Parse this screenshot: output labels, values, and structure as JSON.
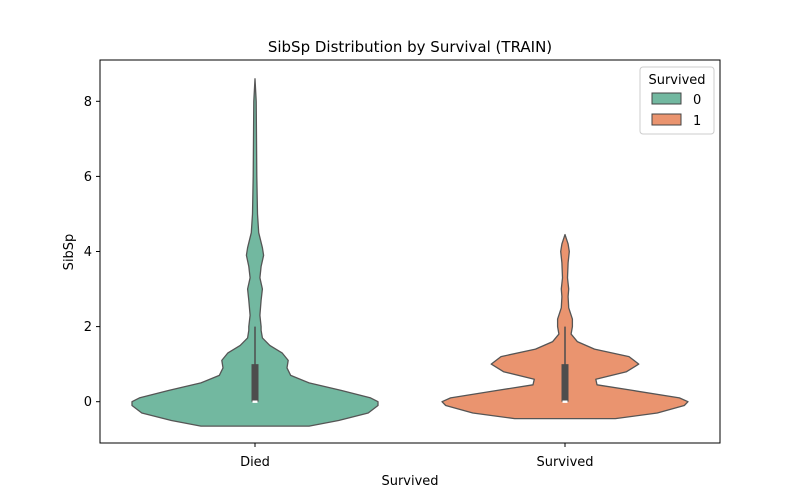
{
  "chart_data": {
    "type": "violin",
    "title": "SibSp Distribution by Survival (TRAIN)",
    "xlabel": "Survived",
    "ylabel": "SibSp",
    "categories": [
      "Died",
      "Survived"
    ],
    "ylim": [
      -1.1,
      9.1
    ],
    "yticks": [
      0,
      2,
      4,
      6,
      8
    ],
    "legend": {
      "title": "Survived",
      "position": "top-right",
      "entries": [
        {
          "label": "0",
          "color": "#72b8a0"
        },
        {
          "label": "1",
          "color": "#ea946f"
        }
      ]
    },
    "series": [
      {
        "name": "0",
        "category": "Died",
        "color": "#72b8a0",
        "range": [
          -0.65,
          8.6
        ],
        "quartiles": {
          "q1": 0,
          "median": 0,
          "q3": 1
        },
        "whiskers": [
          0,
          2
        ],
        "density": [
          [
            -0.65,
            0.44
          ],
          [
            -0.5,
            0.68
          ],
          [
            -0.3,
            0.92
          ],
          [
            -0.1,
            1.0
          ],
          [
            0.0,
            1.0
          ],
          [
            0.1,
            0.94
          ],
          [
            0.3,
            0.7
          ],
          [
            0.5,
            0.44
          ],
          [
            0.7,
            0.29
          ],
          [
            0.9,
            0.26
          ],
          [
            1.1,
            0.27
          ],
          [
            1.3,
            0.22
          ],
          [
            1.5,
            0.12
          ],
          [
            1.7,
            0.06
          ],
          [
            1.9,
            0.05
          ],
          [
            2.0,
            0.05
          ],
          [
            2.3,
            0.04
          ],
          [
            2.7,
            0.05
          ],
          [
            3.0,
            0.06
          ],
          [
            3.3,
            0.04
          ],
          [
            3.6,
            0.05
          ],
          [
            3.9,
            0.07
          ],
          [
            4.1,
            0.06
          ],
          [
            4.5,
            0.03
          ],
          [
            5.0,
            0.02
          ],
          [
            6.0,
            0.015
          ],
          [
            7.0,
            0.012
          ],
          [
            8.0,
            0.01
          ],
          [
            8.6,
            0.0
          ]
        ]
      },
      {
        "name": "1",
        "category": "Survived",
        "color": "#ea946f",
        "range": [
          -0.45,
          4.45
        ],
        "quartiles": {
          "q1": 0,
          "median": 0,
          "q3": 1
        },
        "whiskers": [
          0,
          2
        ],
        "density": [
          [
            -0.45,
            0.41
          ],
          [
            -0.3,
            0.75
          ],
          [
            -0.1,
            0.97
          ],
          [
            0.0,
            1.0
          ],
          [
            0.1,
            0.93
          ],
          [
            0.3,
            0.55
          ],
          [
            0.45,
            0.26
          ],
          [
            0.6,
            0.25
          ],
          [
            0.8,
            0.5
          ],
          [
            1.0,
            0.6
          ],
          [
            1.2,
            0.52
          ],
          [
            1.4,
            0.24
          ],
          [
            1.6,
            0.1
          ],
          [
            1.8,
            0.05
          ],
          [
            2.0,
            0.06
          ],
          [
            2.2,
            0.06
          ],
          [
            2.5,
            0.03
          ],
          [
            2.8,
            0.025
          ],
          [
            3.0,
            0.03
          ],
          [
            3.3,
            0.02
          ],
          [
            3.7,
            0.025
          ],
          [
            4.0,
            0.035
          ],
          [
            4.2,
            0.025
          ],
          [
            4.45,
            0.0
          ]
        ]
      }
    ]
  }
}
